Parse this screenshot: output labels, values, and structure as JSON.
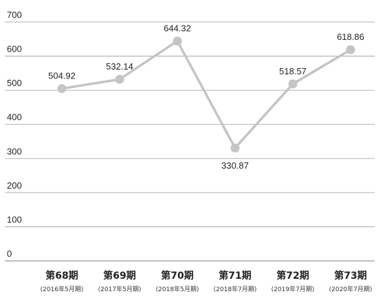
{
  "chart_data": {
    "type": "line",
    "title": "",
    "xlabel": "",
    "ylabel": "",
    "ylim": [
      0,
      700
    ],
    "yticks": [
      0,
      100,
      200,
      300,
      400,
      500,
      600,
      700
    ],
    "grid": true,
    "legend": "none",
    "categories": [
      {
        "label": "第68期",
        "sub": "(2016年5月期)"
      },
      {
        "label": "第69期",
        "sub": "(2017年5月期)"
      },
      {
        "label": "第70期",
        "sub": "(2018年5月期)"
      },
      {
        "label": "第71期",
        "sub": "(2018年7月期)"
      },
      {
        "label": "第72期",
        "sub": "(2019年7月期)"
      },
      {
        "label": "第73期",
        "sub": "(2020年7月期)"
      }
    ],
    "series": [
      {
        "values": [
          504.92,
          532.14,
          644.32,
          330.87,
          518.57,
          618.86
        ]
      }
    ],
    "data_labels": [
      "504.92",
      "532.14",
      "644.32",
      "330.87",
      "518.57",
      "618.86"
    ],
    "colors": {
      "line": "#c4c4c4",
      "marker": "#c4c4c4",
      "grid": "#9a9a9a",
      "text": "#222222"
    }
  }
}
